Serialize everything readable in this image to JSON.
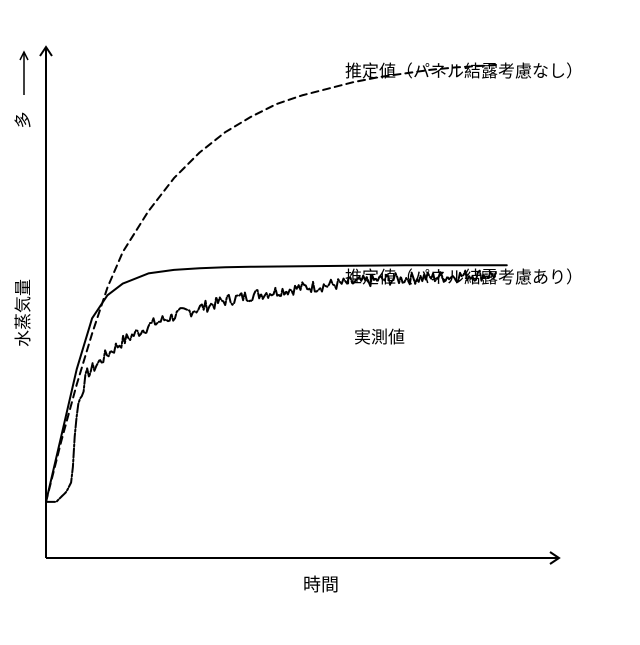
{
  "chart_data": {
    "type": "line",
    "title": "",
    "xlabel": "時間",
    "ylabel": "水蒸気量",
    "y_direction_label": "多",
    "xlim": [
      0,
      100
    ],
    "ylim": [
      0,
      100
    ],
    "grid": false,
    "legend": "none",
    "series": [
      {
        "name": "推定値（パネル結露考慮なし）",
        "style": "dashed",
        "color": "#000000",
        "x": [
          0,
          3,
          6,
          9,
          12,
          15,
          20,
          25,
          30,
          35,
          40,
          45,
          50,
          55,
          60,
          65,
          70,
          75,
          80,
          85,
          88
        ],
        "y": [
          11,
          23,
          34,
          44,
          53,
          60,
          68,
          74.5,
          79.5,
          83.5,
          86.5,
          89,
          90.7,
          92,
          93.3,
          94.3,
          95,
          95.7,
          96.2,
          96.5,
          96.7
        ]
      },
      {
        "name": "推定値（パネル結露考慮あり）",
        "style": "solid",
        "color": "#000000",
        "x": [
          0,
          3,
          6,
          9,
          12,
          15,
          20,
          25,
          30,
          35,
          40,
          50,
          60,
          70,
          80,
          90
        ],
        "y": [
          11,
          24,
          37,
          47,
          51.5,
          53.8,
          55.8,
          56.5,
          56.8,
          57,
          57.1,
          57.2,
          57.3,
          57.4,
          57.4,
          57.4
        ]
      },
      {
        "name": "実測値",
        "style": "noisy-dashdot",
        "color": "#000000",
        "x": [
          0,
          2,
          3,
          4,
          5,
          6,
          8,
          10,
          12,
          15,
          20,
          25,
          30,
          35,
          40,
          45,
          50,
          55,
          60,
          65,
          70,
          75,
          80,
          85,
          88
        ],
        "y": [
          11,
          11,
          12,
          13,
          15,
          29,
          36,
          38,
          40,
          42.5,
          45.5,
          47.5,
          49,
          50.5,
          51.5,
          52.3,
          53,
          53.5,
          54,
          54.5,
          54.8,
          55,
          55.3,
          55.5,
          55.6
        ]
      }
    ]
  }
}
